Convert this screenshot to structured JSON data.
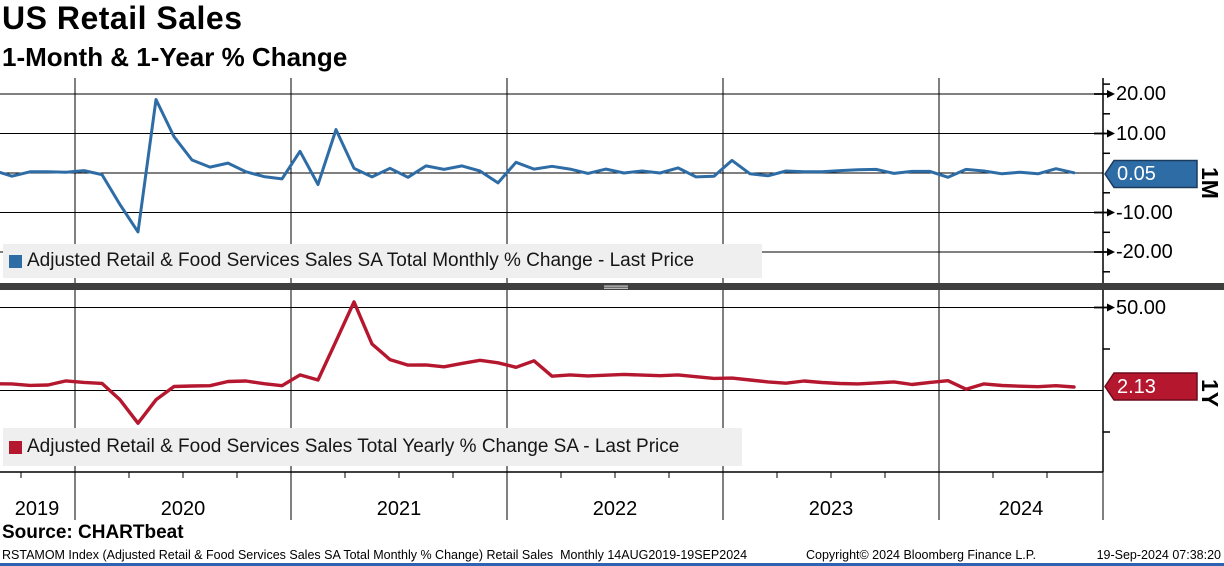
{
  "header": {
    "title": "US Retail Sales",
    "subtitle": "1-Month & 1-Year % Change"
  },
  "legends": {
    "top": "Adjusted Retail & Food Services Sales SA Total Monthly % Change - Last Price",
    "bottom": "Adjusted Retail & Food Services Sales Total Yearly % Change SA - Last Price"
  },
  "axis": {
    "top_yticks": [
      "20.00",
      "10.00",
      "-10.00",
      "-20.00"
    ],
    "bottom_yticks": [
      "50.00"
    ],
    "top_tag": "0.05",
    "bottom_tag": "2.13",
    "top_side_label": "1M",
    "bottom_side_label": "1Y",
    "years": [
      "2019",
      "2020",
      "2021",
      "2022",
      "2023",
      "2024"
    ]
  },
  "footer": {
    "source": "Source: CHARTbeat",
    "left": "RSTAMOM Index (Adjusted Retail & Food Services Sales SA Total Monthly % Change) Retail Sales  Monthly 14AUG2019-19SEP2024",
    "center": "Copyright© 2024 Bloomberg Finance L.P.",
    "right": "19-Sep-2024 07:38:20"
  },
  "colors": {
    "blue_line": "#2e6ca6",
    "blue_tag_border": "#1b3a5c",
    "red_line": "#b5172f",
    "red_tag_border": "#6b0d1c",
    "legend_bg": "#efefef",
    "grid": "#000000",
    "divider": "#3f3f3f",
    "bottom_strip": "#2e62b2"
  },
  "chart_data": [
    {
      "type": "line",
      "panel": "top",
      "title": "Adjusted Retail & Food Services Sales SA Total Monthly % Change - Last Price",
      "axis_side_label": "1M",
      "last_price": 0.05,
      "ylim": [
        -27.8,
        24.1
      ],
      "yticks": [
        20,
        10,
        0,
        -10,
        -20
      ],
      "legend_position": "bottom-left",
      "grid": true,
      "x": [
        "2019-08",
        "2019-09",
        "2019-10",
        "2019-11",
        "2019-12",
        "2020-01",
        "2020-02",
        "2020-03",
        "2020-04",
        "2020-05",
        "2020-06",
        "2020-07",
        "2020-08",
        "2020-09",
        "2020-10",
        "2020-11",
        "2020-12",
        "2021-01",
        "2021-02",
        "2021-03",
        "2021-04",
        "2021-05",
        "2021-06",
        "2021-07",
        "2021-08",
        "2021-09",
        "2021-10",
        "2021-11",
        "2021-12",
        "2022-01",
        "2022-02",
        "2022-03",
        "2022-04",
        "2022-05",
        "2022-06",
        "2022-07",
        "2022-08",
        "2022-09",
        "2022-10",
        "2022-11",
        "2022-12",
        "2023-01",
        "2023-02",
        "2023-03",
        "2023-04",
        "2023-05",
        "2023-06",
        "2023-07",
        "2023-08",
        "2023-09",
        "2023-10",
        "2023-11",
        "2023-12",
        "2024-01",
        "2024-02",
        "2024-03",
        "2024-04",
        "2024-05",
        "2024-06",
        "2024-07",
        "2024-08"
      ],
      "values": [
        0.6,
        -0.8,
        0.3,
        0.3,
        0.2,
        0.6,
        -0.4,
        -8.0,
        -14.9,
        18.6,
        9.2,
        3.3,
        1.5,
        2.5,
        0.3,
        -0.9,
        -1.5,
        5.5,
        -2.9,
        11.0,
        1.2,
        -1.0,
        1.2,
        -1.1,
        1.8,
        0.9,
        1.8,
        0.5,
        -2.5,
        2.7,
        1.0,
        1.7,
        1.0,
        -0.1,
        1.0,
        0.0,
        0.5,
        0.0,
        1.3,
        -1.0,
        -0.8,
        3.2,
        -0.2,
        -0.7,
        0.5,
        0.3,
        0.3,
        0.6,
        0.8,
        0.9,
        -0.1,
        0.4,
        0.4,
        -1.1,
        0.9,
        0.5,
        -0.2,
        0.2,
        -0.2,
        1.1,
        0.05
      ]
    },
    {
      "type": "line",
      "panel": "bottom",
      "title": "Adjusted Retail & Food Services Sales Total Yearly % Change SA - Last Price",
      "axis_side_label": "1Y",
      "last_price": 2.13,
      "ylim": [
        -49.1,
        60.5
      ],
      "yticks": [
        50,
        0
      ],
      "legend_position": "bottom-left",
      "grid": true,
      "x": [
        "2019-08",
        "2019-09",
        "2019-10",
        "2019-11",
        "2019-12",
        "2020-01",
        "2020-02",
        "2020-03",
        "2020-04",
        "2020-05",
        "2020-06",
        "2020-07",
        "2020-08",
        "2020-09",
        "2020-10",
        "2020-11",
        "2020-12",
        "2021-01",
        "2021-02",
        "2021-03",
        "2021-04",
        "2021-05",
        "2021-06",
        "2021-07",
        "2021-08",
        "2021-09",
        "2021-10",
        "2021-11",
        "2021-12",
        "2022-01",
        "2022-02",
        "2022-03",
        "2022-04",
        "2022-05",
        "2022-06",
        "2022-07",
        "2022-08",
        "2022-09",
        "2022-10",
        "2022-11",
        "2022-12",
        "2023-01",
        "2023-02",
        "2023-03",
        "2023-04",
        "2023-05",
        "2023-06",
        "2023-07",
        "2023-08",
        "2023-09",
        "2023-10",
        "2023-11",
        "2023-12",
        "2024-01",
        "2024-02",
        "2024-03",
        "2024-04",
        "2024-05",
        "2024-06",
        "2024-07",
        "2024-08"
      ],
      "values": [
        4.1,
        4.0,
        3.1,
        3.3,
        5.8,
        4.9,
        4.3,
        -5.6,
        -19.7,
        -5.6,
        2.4,
        2.7,
        2.9,
        5.4,
        5.7,
        4.1,
        2.9,
        9.4,
        6.3,
        29.7,
        53.4,
        28.0,
        18.6,
        15.3,
        15.4,
        14.3,
        16.3,
        18.2,
        16.7,
        14.0,
        17.9,
        8.6,
        9.4,
        8.8,
        9.2,
        9.7,
        9.3,
        8.9,
        9.4,
        8.3,
        7.3,
        7.5,
        6.3,
        5.2,
        4.4,
        5.7,
        4.8,
        4.2,
        4.0,
        4.6,
        5.2,
        3.6,
        4.9,
        5.9,
        0.8,
        4.0,
        3.0,
        2.6,
        2.3,
        2.9,
        2.13
      ]
    }
  ]
}
